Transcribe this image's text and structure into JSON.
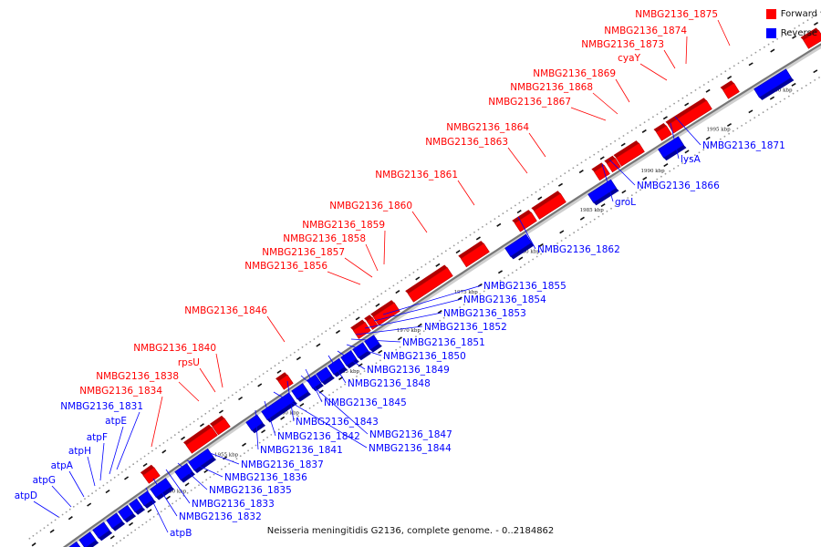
{
  "caption": "Neisseria meningitidis G2136, complete genome. - 0..2184862",
  "legend": {
    "forward_label": "Forward",
    "reverse_label": "Reverse",
    "forward_color": "#ff0000",
    "reverse_color": "#0000ff"
  },
  "colors": {
    "backbone": "#777777",
    "tick": "#111111"
  },
  "kbp_marks": [
    "1950 kbp",
    "1955 kbp",
    "1960 kbp",
    "1965 kbp",
    "1970 kbp",
    "1975 kbp",
    "1980 kbp",
    "1985 kbp",
    "1990 kbp",
    "1995 kbp",
    "2000 kbp"
  ],
  "forward_genes": [
    {
      "name": "NMBG2136_1875"
    },
    {
      "name": "NMBG2136_1874"
    },
    {
      "name": "NMBG2136_1873"
    },
    {
      "name": "cyaY"
    },
    {
      "name": "NMBG2136_1869"
    },
    {
      "name": "NMBG2136_1868"
    },
    {
      "name": "NMBG2136_1867"
    },
    {
      "name": "NMBG2136_1864"
    },
    {
      "name": "NMBG2136_1863"
    },
    {
      "name": "NMBG2136_1861"
    },
    {
      "name": "NMBG2136_1860"
    },
    {
      "name": "NMBG2136_1859"
    },
    {
      "name": "NMBG2136_1858"
    },
    {
      "name": "NMBG2136_1857"
    },
    {
      "name": "NMBG2136_1856"
    },
    {
      "name": "NMBG2136_1846"
    },
    {
      "name": "NMBG2136_1840"
    },
    {
      "name": "rpsU"
    },
    {
      "name": "NMBG2136_1838"
    },
    {
      "name": "NMBG2136_1834"
    }
  ],
  "reverse_genes_left": [
    {
      "name": "NMBG2136_1831"
    },
    {
      "name": "atpE"
    },
    {
      "name": "atpF"
    },
    {
      "name": "atpH"
    },
    {
      "name": "atpA"
    },
    {
      "name": "atpG"
    },
    {
      "name": "atpD"
    }
  ],
  "reverse_genes_right": [
    {
      "name": "NMBG2136_1871"
    },
    {
      "name": "lysA"
    },
    {
      "name": "NMBG2136_1866"
    },
    {
      "name": "groL"
    },
    {
      "name": "NMBG2136_1862"
    },
    {
      "name": "NMBG2136_1855"
    },
    {
      "name": "NMBG2136_1854"
    },
    {
      "name": "NMBG2136_1853"
    },
    {
      "name": "NMBG2136_1852"
    },
    {
      "name": "NMBG2136_1851"
    },
    {
      "name": "NMBG2136_1850"
    },
    {
      "name": "NMBG2136_1849"
    },
    {
      "name": "NMBG2136_1848"
    },
    {
      "name": "NMBG2136_1845"
    },
    {
      "name": "NMBG2136_1843"
    },
    {
      "name": "NMBG2136_1847"
    },
    {
      "name": "NMBG2136_1842"
    },
    {
      "name": "NMBG2136_1844"
    },
    {
      "name": "NMBG2136_1841"
    },
    {
      "name": "NMBG2136_1837"
    },
    {
      "name": "NMBG2136_1836"
    },
    {
      "name": "NMBG2136_1835"
    },
    {
      "name": "NMBG2136_1833"
    },
    {
      "name": "NMBG2136_1832"
    },
    {
      "name": "atpB"
    }
  ]
}
